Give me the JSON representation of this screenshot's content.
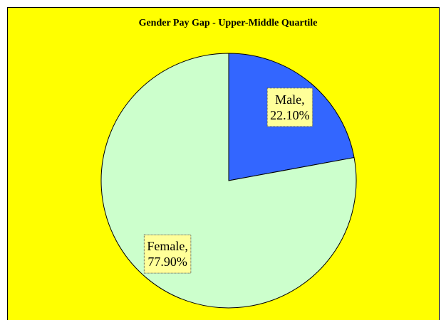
{
  "chart_data": {
    "type": "pie",
    "title": "Gender Pay Gap - Upper-Middle Quartile",
    "categories": [
      "Male,",
      "Female,"
    ],
    "values": [
      22.1,
      77.9
    ],
    "value_labels": [
      "22.10%",
      "77.90%"
    ],
    "colors": [
      "#3366ff",
      "#ccffcc"
    ],
    "start_angle": 0,
    "direction": "clockwise"
  }
}
